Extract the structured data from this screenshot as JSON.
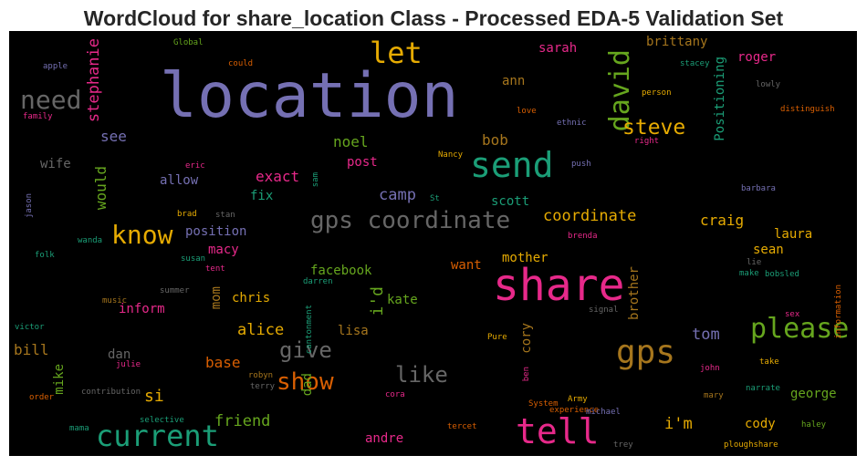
{
  "title": "WordCloud for share_location Class - Processed EDA-5 Validation Set",
  "words": [
    {
      "text": "location",
      "color": "#7570b3"
    },
    {
      "text": "share",
      "color": "#e7298a"
    },
    {
      "text": "send",
      "color": "#1b9e77"
    },
    {
      "text": "gps coordinate",
      "color": "#666666"
    },
    {
      "text": "gps",
      "color": "#a6761d"
    },
    {
      "text": "tell",
      "color": "#e7298a"
    },
    {
      "text": "current",
      "color": "#1b9e77"
    },
    {
      "text": "please",
      "color": "#66a61e"
    },
    {
      "text": "know",
      "color": "#e6ab02"
    },
    {
      "text": "need",
      "color": "#666666"
    },
    {
      "text": "let",
      "color": "#e6ab02"
    },
    {
      "text": "david",
      "color": "#66a61e"
    },
    {
      "text": "steve",
      "color": "#e6ab02"
    },
    {
      "text": "show",
      "color": "#d95f02"
    },
    {
      "text": "like",
      "color": "#666666"
    },
    {
      "text": "give",
      "color": "#666666"
    },
    {
      "text": "stephanie",
      "color": "#e7298a"
    },
    {
      "text": "coordinate",
      "color": "#e6ab02"
    },
    {
      "text": "friend",
      "color": "#66a61e"
    },
    {
      "text": "camp",
      "color": "#7570b3"
    },
    {
      "text": "i'm",
      "color": "#e6ab02"
    },
    {
      "text": "alice",
      "color": "#e6ab02"
    },
    {
      "text": "exact",
      "color": "#e7298a"
    },
    {
      "text": "noel",
      "color": "#66a61e"
    },
    {
      "text": "bob",
      "color": "#a6761d"
    },
    {
      "text": "see",
      "color": "#7570b3"
    },
    {
      "text": "craig",
      "color": "#e6ab02"
    },
    {
      "text": "would",
      "color": "#66a61e"
    },
    {
      "text": "i'd",
      "color": "#66a61e"
    },
    {
      "text": "Positioning",
      "color": "#1b9e77"
    },
    {
      "text": "brittany",
      "color": "#a6761d"
    },
    {
      "text": "sarah",
      "color": "#e7298a"
    },
    {
      "text": "roger",
      "color": "#e7298a"
    },
    {
      "text": "ann",
      "color": "#a6761d"
    },
    {
      "text": "mother",
      "color": "#e6ab02"
    },
    {
      "text": "tom",
      "color": "#7570b3"
    },
    {
      "text": "bill",
      "color": "#a6761d"
    },
    {
      "text": "base",
      "color": "#d95f02"
    },
    {
      "text": "si",
      "color": "#e6ab02"
    },
    {
      "text": "mike",
      "color": "#66a61e"
    },
    {
      "text": "dad",
      "color": "#66a61e"
    },
    {
      "text": "andre",
      "color": "#e7298a"
    },
    {
      "text": "cody",
      "color": "#e6ab02"
    },
    {
      "text": "george",
      "color": "#66a61e"
    },
    {
      "text": "laura",
      "color": "#e6ab02"
    },
    {
      "text": "sean",
      "color": "#e6ab02"
    },
    {
      "text": "chris",
      "color": "#e6ab02"
    },
    {
      "text": "mom",
      "color": "#a6761d"
    },
    {
      "text": "inform",
      "color": "#e7298a"
    },
    {
      "text": "macy",
      "color": "#e7298a"
    },
    {
      "text": "position",
      "color": "#7570b3"
    },
    {
      "text": "allow",
      "color": "#7570b3"
    },
    {
      "text": "wife",
      "color": "#666666"
    },
    {
      "text": "fix",
      "color": "#1b9e77"
    },
    {
      "text": "facebook",
      "color": "#66a61e"
    },
    {
      "text": "kate",
      "color": "#66a61e"
    },
    {
      "text": "lisa",
      "color": "#a6761d"
    },
    {
      "text": "cory",
      "color": "#a6761d"
    },
    {
      "text": "brother",
      "color": "#a6761d"
    },
    {
      "text": "want",
      "color": "#d95f02"
    },
    {
      "text": "scott",
      "color": "#1b9e77"
    },
    {
      "text": "post",
      "color": "#e7298a"
    },
    {
      "text": "dan",
      "color": "#666666"
    },
    {
      "text": "Global",
      "color": "#66a61e"
    },
    {
      "text": "could",
      "color": "#d95f02"
    },
    {
      "text": "apple",
      "color": "#7570b3"
    },
    {
      "text": "family",
      "color": "#e7298a"
    },
    {
      "text": "stacey",
      "color": "#1b9e77"
    },
    {
      "text": "person",
      "color": "#e6ab02"
    },
    {
      "text": "lowly",
      "color": "#666666"
    },
    {
      "text": "love",
      "color": "#d95f02"
    },
    {
      "text": "distinguish",
      "color": "#d95f02"
    },
    {
      "text": "ethnic",
      "color": "#7570b3"
    },
    {
      "text": "right",
      "color": "#e7298a"
    },
    {
      "text": "eric",
      "color": "#e7298a"
    },
    {
      "text": "Nancy",
      "color": "#e6ab02"
    },
    {
      "text": "push",
      "color": "#7570b3"
    },
    {
      "text": "sam",
      "color": "#1b9e77"
    },
    {
      "text": "jason",
      "color": "#7570b3"
    },
    {
      "text": "St",
      "color": "#1b9e77"
    },
    {
      "text": "barbara",
      "color": "#7570b3"
    },
    {
      "text": "brad",
      "color": "#e6ab02"
    },
    {
      "text": "stan",
      "color": "#666666"
    },
    {
      "text": "wanda",
      "color": "#1b9e77"
    },
    {
      "text": "brenda",
      "color": "#e7298a"
    },
    {
      "text": "folk",
      "color": "#1b9e77"
    },
    {
      "text": "susan",
      "color": "#1b9e77"
    },
    {
      "text": "tent",
      "color": "#e7298a"
    },
    {
      "text": "lie",
      "color": "#666666"
    },
    {
      "text": "make",
      "color": "#1b9e77"
    },
    {
      "text": "bobsled",
      "color": "#1b9e77"
    },
    {
      "text": "music",
      "color": "#a6761d"
    },
    {
      "text": "summer",
      "color": "#666666"
    },
    {
      "text": "darren",
      "color": "#1b9e77"
    },
    {
      "text": "sex",
      "color": "#e7298a"
    },
    {
      "text": "information",
      "color": "#d95f02"
    },
    {
      "text": "cantonment",
      "color": "#1b9e77"
    },
    {
      "text": "signal",
      "color": "#666666"
    },
    {
      "text": "victor",
      "color": "#1b9e77"
    },
    {
      "text": "Pure",
      "color": "#e6ab02"
    },
    {
      "text": "julie",
      "color": "#e7298a"
    },
    {
      "text": "robyn",
      "color": "#a6761d"
    },
    {
      "text": "terry",
      "color": "#666666"
    },
    {
      "text": "ben",
      "color": "#e7298a"
    },
    {
      "text": "john",
      "color": "#e7298a"
    },
    {
      "text": "take",
      "color": "#e6ab02"
    },
    {
      "text": "order",
      "color": "#d95f02"
    },
    {
      "text": "contribution",
      "color": "#666666"
    },
    {
      "text": "cora",
      "color": "#e7298a"
    },
    {
      "text": "System",
      "color": "#d95f02"
    },
    {
      "text": "Army",
      "color": "#e6ab02"
    },
    {
      "text": "mary",
      "color": "#a6761d"
    },
    {
      "text": "narrate",
      "color": "#1b9e77"
    },
    {
      "text": "experience",
      "color": "#d95f02"
    },
    {
      "text": "michael",
      "color": "#7570b3"
    },
    {
      "text": "mama",
      "color": "#1b9e77"
    },
    {
      "text": "selective",
      "color": "#1b9e77"
    },
    {
      "text": "tercet",
      "color": "#d95f02"
    },
    {
      "text": "haley",
      "color": "#66a61e"
    },
    {
      "text": "trey",
      "color": "#666666"
    },
    {
      "text": "ploughshare",
      "color": "#e6ab02"
    }
  ]
}
